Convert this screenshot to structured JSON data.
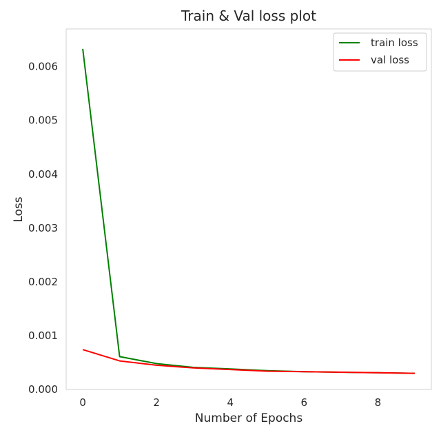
{
  "chart_data": {
    "type": "line",
    "title": "Train & Val loss plot",
    "xlabel": "Number of Epochs",
    "ylabel": "Loss",
    "xlim": [
      -0.45,
      9.45
    ],
    "ylim": [
      0.0,
      0.0067
    ],
    "xticks": [
      0,
      2,
      4,
      6,
      8
    ],
    "xtick_labels": [
      "0",
      "2",
      "4",
      "6",
      "8"
    ],
    "yticks": [
      0.0,
      0.001,
      0.002,
      0.003,
      0.004,
      0.005,
      0.006
    ],
    "ytick_labels": [
      "0.000",
      "0.001",
      "0.002",
      "0.003",
      "0.004",
      "0.005",
      "0.006"
    ],
    "grid": false,
    "legend_position": "top-right",
    "x": [
      0,
      1,
      2,
      3,
      4,
      5,
      6,
      7,
      8,
      9
    ],
    "series": [
      {
        "name": "train loss",
        "color": "#008000",
        "values": [
          0.00633,
          0.00061,
          0.00048,
          0.00041,
          0.00038,
          0.00035,
          0.00033,
          0.00032,
          0.00031,
          0.0003
        ]
      },
      {
        "name": "val loss",
        "color": "#ff0000",
        "values": [
          0.00074,
          0.00053,
          0.00045,
          0.0004,
          0.00037,
          0.00034,
          0.00033,
          0.00032,
          0.00031,
          0.0003
        ]
      }
    ]
  }
}
